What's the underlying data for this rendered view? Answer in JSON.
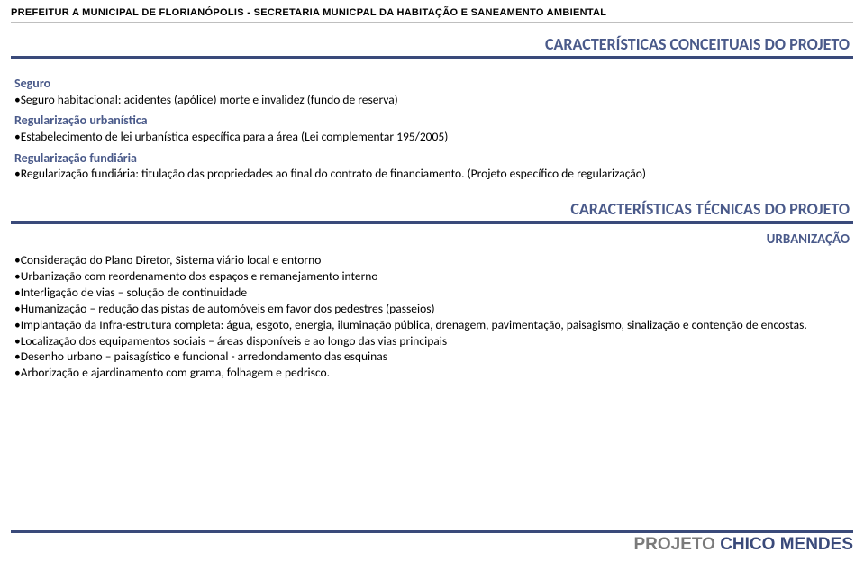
{
  "header": {
    "text": "PREFEITUR A MUNICIPAL DE FLORIANÓPOLIS - SECRETARIA MUNICPAL DA HABITAÇÃO E SANEAMENTO AMBIENTAL",
    "line_color": "#bfbfbf"
  },
  "section1": {
    "title": "CARACTERÍSTICAS CONCEITUAIS DO PROJETO",
    "title_color": "#4a5a8a",
    "underline_color": "#3a4a7a",
    "groups": [
      {
        "heading": "Seguro",
        "items": [
          "•Seguro habitacional: acidentes (apólice) morte e invalidez (fundo de reserva)"
        ]
      },
      {
        "heading": "Regularização urbanística",
        "items": [
          "•Estabelecimento de lei urbanística específica para a área (Lei complementar 195/2005)"
        ]
      },
      {
        "heading": "Regularização fundiária",
        "items": [
          "•Regularização fundiária: titulação das propriedades ao final do contrato de financiamento. (Projeto específico de regularização)"
        ]
      }
    ]
  },
  "section2": {
    "title": "CARACTERÍSTICAS TÉCNICAS DO PROJETO",
    "subtitle": "URBANIZAÇÃO",
    "title_color": "#4a5a8a",
    "underline_color": "#3a4a7a",
    "items": [
      "•Consideração do Plano Diretor, Sistema viário local e entorno",
      "•Urbanização com reordenamento dos espaços e remanejamento interno",
      "•Interligação de vias – solução de continuidade",
      "•Humanização – redução das pistas de automóveis em favor dos pedestres (passeios)",
      "•Implantação da Infra-estrutura completa: água, esgoto, energia, iluminação pública, drenagem, pavimentação, paisagismo, sinalização e contenção de encostas.",
      "•Localização dos equipamentos sociais – áreas disponíveis e ao longo das vias principais",
      "•Desenho urbano – paisagístico e funcional - arredondamento das esquinas",
      "•Arborização e ajardinamento com grama, folhagem e pedrisco."
    ]
  },
  "footer": {
    "projeto": "PROJETO ",
    "nome": "CHICO MENDES",
    "line_color": "#3a4a7a",
    "projeto_color": "#7a7a7a",
    "nome_color": "#3a4a7a"
  },
  "colors": {
    "background": "#ffffff",
    "heading_blue": "#4a5a8a",
    "bar_blue": "#3a4a7a",
    "text": "#000000"
  }
}
